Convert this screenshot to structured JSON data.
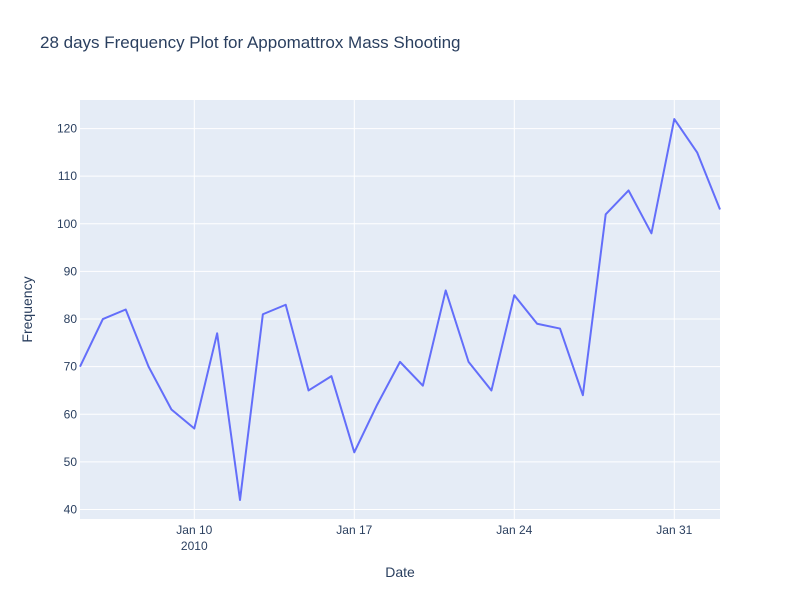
{
  "chart_data": {
    "type": "line",
    "title": "28 days Frequency Plot for Appomattrox Mass Shooting",
    "xlabel": "Date",
    "ylabel": "Frequency",
    "x_range": [
      "2010-01-05",
      "2010-02-02"
    ],
    "ylim": [
      38,
      126
    ],
    "x_ticks": [
      {
        "date": "2010-01-10",
        "label": "Jan 10",
        "sublabel": "2010"
      },
      {
        "date": "2010-01-17",
        "label": "Jan 17",
        "sublabel": ""
      },
      {
        "date": "2010-01-24",
        "label": "Jan 24",
        "sublabel": ""
      },
      {
        "date": "2010-01-31",
        "label": "Jan 31",
        "sublabel": ""
      }
    ],
    "y_ticks": [
      40,
      50,
      60,
      70,
      80,
      90,
      100,
      110,
      120
    ],
    "grid": true,
    "line_color": "#636efa",
    "plot_bg": "#e5ecf6",
    "series": [
      {
        "x": [
          "2010-01-05",
          "2010-01-06",
          "2010-01-07",
          "2010-01-08",
          "2010-01-09",
          "2010-01-10",
          "2010-01-11",
          "2010-01-12",
          "2010-01-13",
          "2010-01-14",
          "2010-01-15",
          "2010-01-16",
          "2010-01-17",
          "2010-01-18",
          "2010-01-19",
          "2010-01-20",
          "2010-01-21",
          "2010-01-22",
          "2010-01-23",
          "2010-01-24",
          "2010-01-25",
          "2010-01-26",
          "2010-01-27",
          "2010-01-28",
          "2010-01-29",
          "2010-01-30",
          "2010-01-31",
          "2010-02-01",
          "2010-02-02"
        ],
        "y": [
          70,
          80,
          82,
          70,
          61,
          57,
          77,
          42,
          81,
          83,
          65,
          68,
          52,
          62,
          71,
          66,
          86,
          71,
          65,
          85,
          79,
          78,
          64,
          102,
          107,
          98,
          122,
          115,
          103
        ]
      }
    ]
  }
}
